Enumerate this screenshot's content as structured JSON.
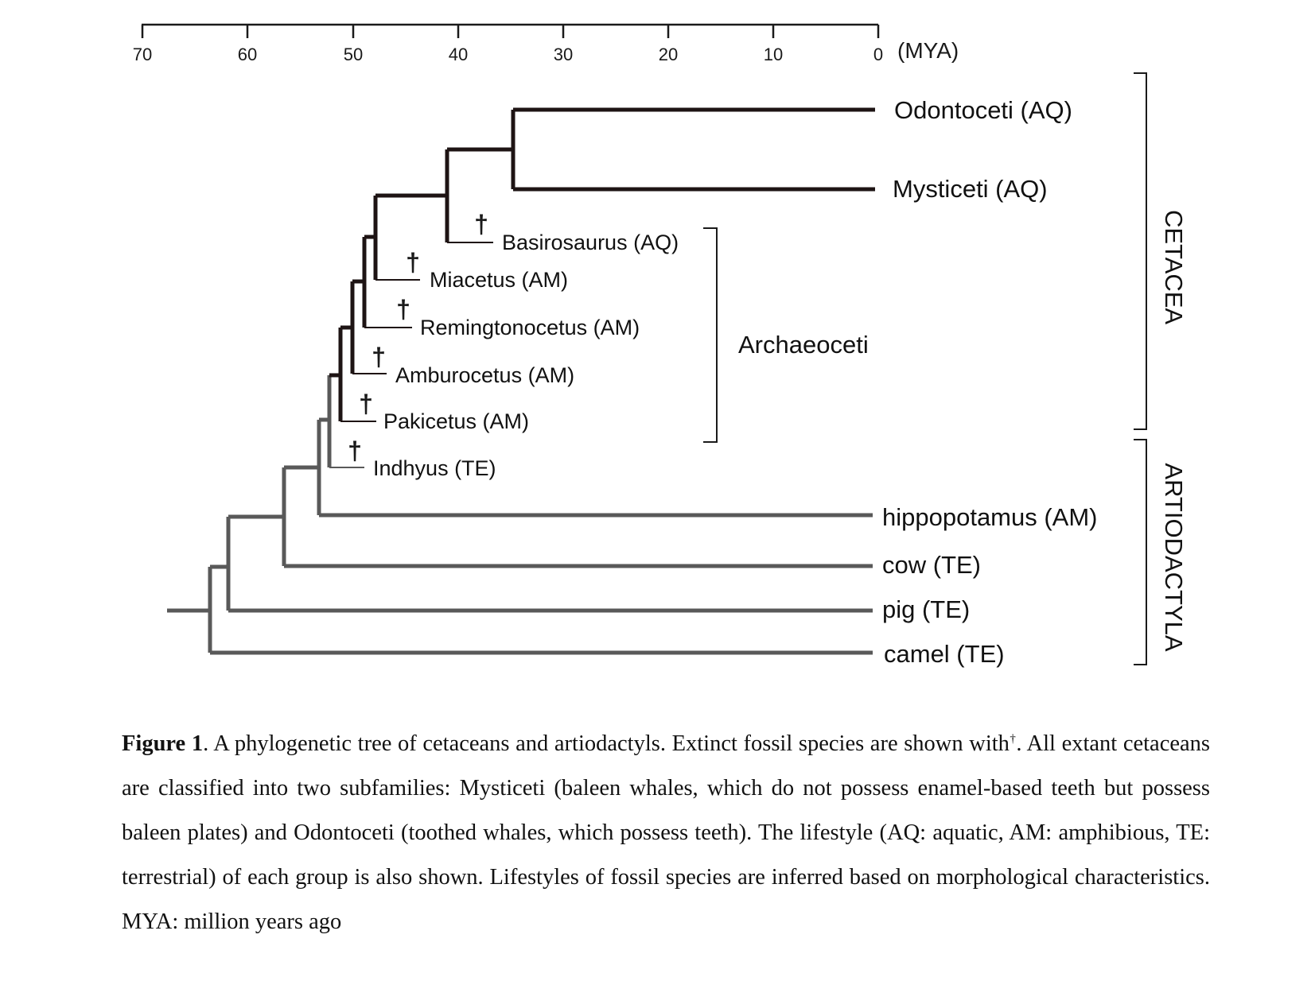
{
  "axis": {
    "ticks": [
      "70",
      "60",
      "50",
      "40",
      "30",
      "20",
      "10",
      "0"
    ],
    "unit_label": "(MYA)"
  },
  "taxa": {
    "odontoceti": "Odontoceti (AQ)",
    "mysticeti": "Mysticeti (AQ)",
    "basilosaurus": "Basirosaurus (AQ)",
    "miacetus": "Miacetus (AM)",
    "remingtonocetus": "Remingtonocetus (AM)",
    "amburocetus": "Amburocetus (AM)",
    "pakicetus": "Pakicetus (AM)",
    "indhyus": "Indhyus (TE)",
    "hippopotamus": "hippopotamus (AM)",
    "cow": "cow (TE)",
    "pig": "pig (TE)",
    "camel": "camel (TE)"
  },
  "extinct_marker": "†",
  "groups": {
    "archaeoceti": "Archaeoceti",
    "cetacea": "CETACEA",
    "artiodactyla": "ARTIODACTYLA"
  },
  "colors": {
    "cetacean_branch": "#1e1414",
    "artiodactyl_branch": "#595959",
    "text": "#111111"
  },
  "caption": {
    "label": "Figure 1",
    "text_before_marker": ". A phylogenetic tree of cetaceans and artiodactyls. Extinct fossil species are shown with",
    "marker": "†",
    "text_after_marker": ". All extant cetaceans are classified into two subfamilies: Mysticeti (baleen whales, which do not possess enamel-based teeth but possess baleen plates) and Odontoceti (toothed whales, which possess teeth). The lifestyle (AQ: aquatic, AM: amphibious, TE: terrestrial) of each group is also shown. Lifestyles of fossil species are inferred based on morphological characteristics. MYA: million years ago"
  }
}
